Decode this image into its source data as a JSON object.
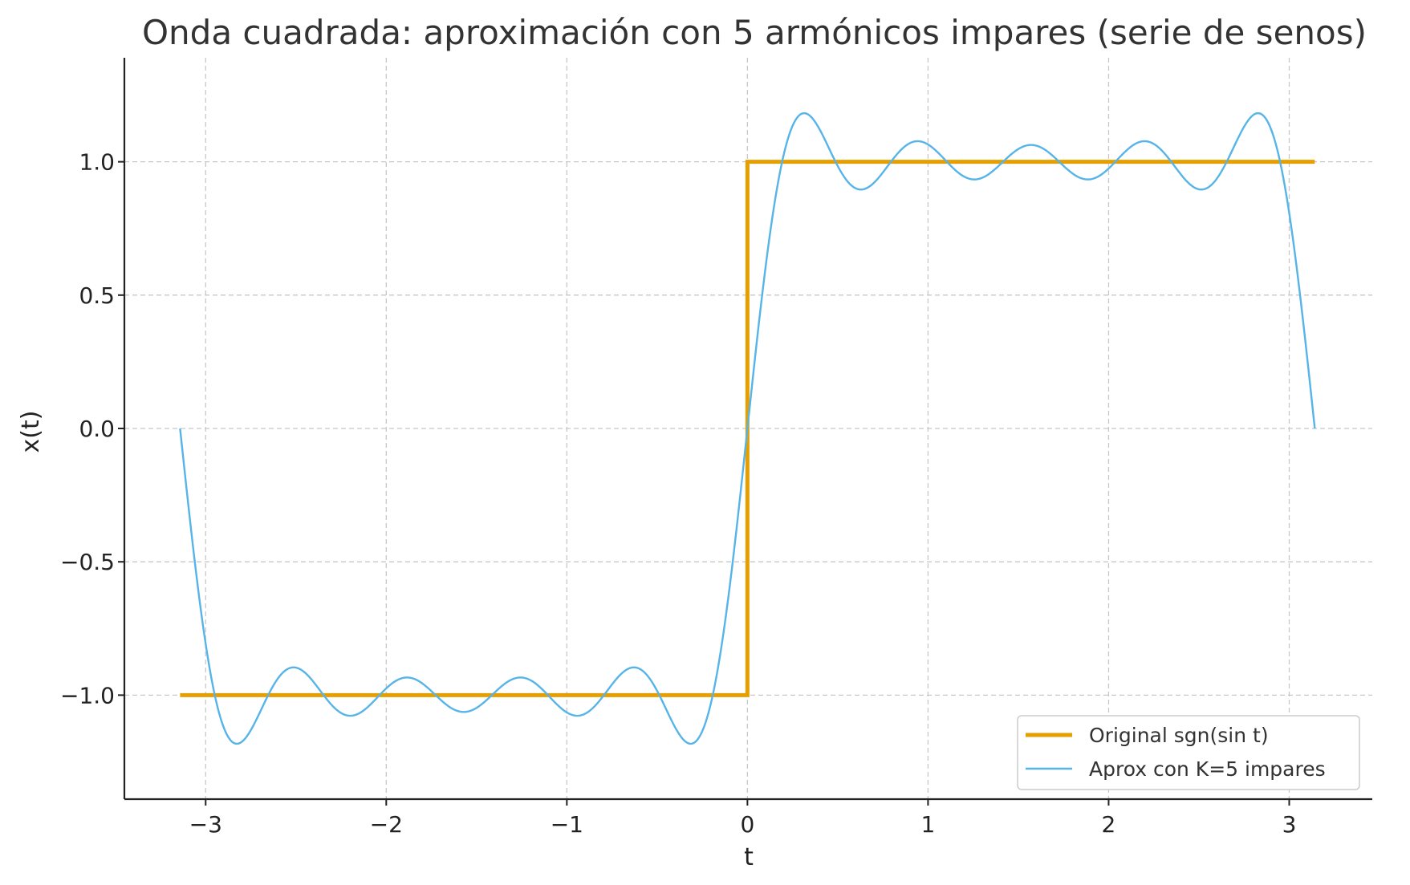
{
  "chart_data": {
    "type": "line",
    "title": "Onda cuadrada: aproximación con 5 armónicos impares (serie de senos)",
    "xlabel": "t",
    "ylabel": "x(t)",
    "xlim": [
      -3.45,
      3.46
    ],
    "ylim": [
      -1.39,
      1.39
    ],
    "grid": true,
    "legend_position": "lower-right",
    "x_ticks": [
      -3,
      -2,
      -1,
      0,
      1,
      2,
      3
    ],
    "x_tick_labels": [
      "−3",
      "−2",
      "−1",
      "0",
      "1",
      "2",
      "3"
    ],
    "y_ticks": [
      -1.0,
      -0.5,
      0.0,
      0.5,
      1.0
    ],
    "y_tick_labels": [
      "−1.0",
      "−0.5",
      "0.0",
      "0.5",
      "1.0"
    ],
    "series": [
      {
        "name": "Original sgn(sin t)",
        "color": "#E69F00",
        "style": "thick-solid",
        "x": [
          -3.1416,
          -0.0001,
          0.0,
          0.0001,
          3.1416
        ],
        "y": [
          -1,
          -1,
          0,
          1,
          1
        ]
      },
      {
        "name": "Aprox con K=5 impares",
        "color": "#56B4E9",
        "style": "thin-solid",
        "x": [
          -3.1416,
          -3.0,
          -2.82,
          -2.52,
          -2.2,
          -1.88,
          -1.57,
          -1.26,
          -0.94,
          -0.63,
          -0.32,
          -0.15,
          0.0,
          0.15,
          0.32,
          0.63,
          0.94,
          1.26,
          1.57,
          1.88,
          2.2,
          2.52,
          2.82,
          3.0,
          3.1416
        ],
        "y": [
          0.0,
          -0.79,
          -1.18,
          -0.9,
          -1.07,
          -0.93,
          -1.06,
          -0.93,
          -1.07,
          -0.9,
          -1.18,
          -0.79,
          0.0,
          0.79,
          1.18,
          0.9,
          1.07,
          0.93,
          1.06,
          0.93,
          1.07,
          0.9,
          1.18,
          0.79,
          0.0
        ]
      }
    ]
  }
}
